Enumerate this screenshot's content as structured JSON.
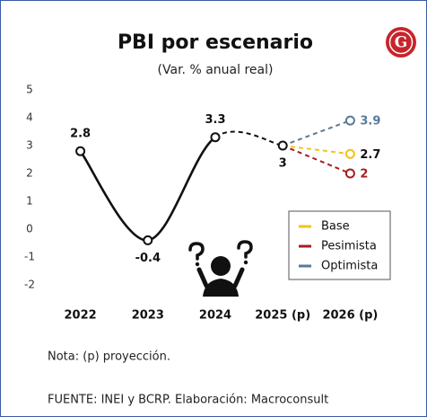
{
  "chart_data": {
    "type": "line",
    "title": "PBI por escenario",
    "subtitle": "(Var. % anual real)",
    "logo": "G",
    "categories": [
      "2022",
      "2023",
      "2024",
      "2025 (p)",
      "2026 (p)"
    ],
    "series": [
      {
        "color": "#111111",
        "label_color": "#111111",
        "label_points": "all",
        "values": [
          2.8,
          -0.4,
          3.3,
          3.0,
          null
        ]
      },
      {
        "name": "Base",
        "color": "#f2c418",
        "label_color": "#111111",
        "label_points": "last",
        "values": [
          null,
          null,
          null,
          3.0,
          2.7
        ]
      },
      {
        "name": "Pesimista",
        "color": "#a51e22",
        "label_color": "#a51e22",
        "label_points": "last",
        "values": [
          null,
          null,
          null,
          3.0,
          2.0
        ]
      },
      {
        "name": "Optimista",
        "color": "#587a98",
        "label_color": "#587a98",
        "label_points": "last",
        "values": [
          null,
          null,
          null,
          3.0,
          3.9
        ]
      }
    ],
    "ylim": [
      -2,
      5
    ],
    "yticks": [
      -2,
      -1,
      0,
      1,
      2,
      3,
      4,
      5
    ],
    "grid": false,
    "legend": "right",
    "note": "Nota: (p) proyección.",
    "source": "FUENTE: INEI y BCRP. Elaboración: Macroconsult"
  }
}
